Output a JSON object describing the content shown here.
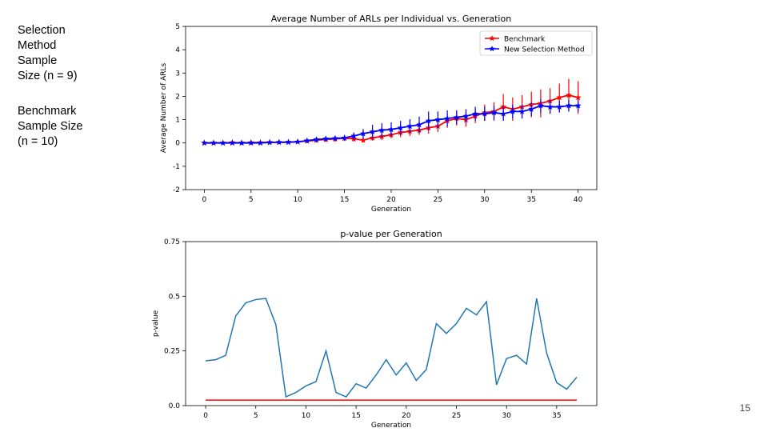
{
  "slide": {
    "selection_text": "Selection\nMethod\nSample\nSize (n = 9)",
    "benchmark_text": "Benchmark\nSample Size\n(n = 10)",
    "page_number": "15"
  },
  "chart_data": [
    {
      "type": "line",
      "title": "Average Number of ARLs per Individual vs. Generation",
      "xlabel": "Generation",
      "ylabel": "Average Number of ARLs",
      "xlim": [
        -2,
        42
      ],
      "ylim": [
        -2,
        5
      ],
      "xticks": [
        0,
        5,
        10,
        15,
        20,
        25,
        30,
        35,
        40
      ],
      "yticks": [
        -2,
        -1,
        0,
        1,
        2,
        3,
        4,
        5
      ],
      "grid": false,
      "legend": "top-right",
      "x": [
        0,
        1,
        2,
        3,
        4,
        5,
        6,
        7,
        8,
        9,
        10,
        11,
        12,
        13,
        14,
        15,
        16,
        17,
        18,
        19,
        20,
        21,
        22,
        23,
        24,
        25,
        26,
        27,
        28,
        29,
        30,
        31,
        32,
        33,
        34,
        35,
        36,
        37,
        38,
        39,
        40
      ],
      "series": [
        {
          "name": "Benchmark",
          "color": "#ff0000",
          "marker": "star",
          "values": [
            0,
            0,
            0,
            0.02,
            0,
            0.02,
            0.02,
            0.03,
            0.03,
            0.04,
            0.05,
            0.08,
            0.12,
            0.15,
            0.17,
            0.2,
            0.18,
            0.12,
            0.22,
            0.28,
            0.35,
            0.45,
            0.5,
            0.55,
            0.65,
            0.72,
            0.95,
            1.05,
            1.0,
            1.15,
            1.3,
            1.35,
            1.55,
            1.45,
            1.55,
            1.65,
            1.7,
            1.8,
            1.95,
            2.05,
            1.95
          ],
          "errors": [
            0.02,
            0.02,
            0.02,
            0.03,
            0.03,
            0.03,
            0.03,
            0.04,
            0.04,
            0.05,
            0.05,
            0.08,
            0.1,
            0.1,
            0.12,
            0.12,
            0.12,
            0.1,
            0.12,
            0.15,
            0.15,
            0.2,
            0.2,
            0.2,
            0.25,
            0.25,
            0.3,
            0.3,
            0.3,
            0.3,
            0.35,
            0.4,
            0.55,
            0.5,
            0.5,
            0.55,
            0.6,
            0.55,
            0.6,
            0.7,
            0.7
          ]
        },
        {
          "name": "New Selection Method",
          "color": "#0000ff",
          "marker": "star",
          "values": [
            0,
            0,
            0,
            0,
            0,
            0,
            0,
            0.02,
            0.03,
            0.03,
            0.05,
            0.1,
            0.15,
            0.18,
            0.2,
            0.22,
            0.3,
            0.4,
            0.48,
            0.55,
            0.58,
            0.65,
            0.72,
            0.78,
            0.95,
            1.0,
            1.05,
            1.1,
            1.15,
            1.25,
            1.25,
            1.3,
            1.25,
            1.35,
            1.35,
            1.45,
            1.6,
            1.55,
            1.55,
            1.6,
            1.6
          ],
          "errors": [
            0.03,
            0.03,
            0.03,
            0.03,
            0.03,
            0.03,
            0.03,
            0.04,
            0.04,
            0.04,
            0.05,
            0.08,
            0.1,
            0.1,
            0.1,
            0.12,
            0.15,
            0.2,
            0.3,
            0.3,
            0.3,
            0.3,
            0.3,
            0.35,
            0.4,
            0.35,
            0.35,
            0.3,
            0.3,
            0.3,
            0.3,
            0.3,
            0.3,
            0.3,
            0.3,
            0.3,
            0.3,
            0.3,
            0.25,
            0.25,
            0.25
          ]
        }
      ]
    },
    {
      "type": "line",
      "title": "p-value per Generation",
      "xlabel": "Generation",
      "ylabel": "p-value",
      "xlim": [
        -2,
        39
      ],
      "ylim": [
        0,
        0.75
      ],
      "xticks": [
        0,
        5,
        10,
        15,
        20,
        25,
        30,
        35
      ],
      "yticks": [
        0.0,
        0.25,
        0.5,
        0.75
      ],
      "ytick_labels": [
        "0.0",
        "0.25",
        "0.5",
        "0.75"
      ],
      "grid": false,
      "x": [
        0,
        1,
        2,
        3,
        4,
        5,
        6,
        7,
        8,
        9,
        10,
        11,
        12,
        13,
        14,
        15,
        16,
        17,
        18,
        19,
        20,
        21,
        22,
        23,
        24,
        25,
        26,
        27,
        28,
        29,
        30,
        31,
        32,
        33,
        34,
        35,
        36,
        37
      ],
      "series": [
        {
          "color": "#1f77b4",
          "values": [
            0.205,
            0.21,
            0.23,
            0.41,
            0.47,
            0.485,
            0.49,
            0.37,
            0.04,
            0.06,
            0.09,
            0.11,
            0.25,
            0.06,
            0.04,
            0.1,
            0.08,
            0.14,
            0.21,
            0.14,
            0.195,
            0.115,
            0.165,
            0.375,
            0.33,
            0.375,
            0.445,
            0.415,
            0.475,
            0.095,
            0.215,
            0.23,
            0.19,
            0.49,
            0.24,
            0.105,
            0.075,
            0.13
          ]
        },
        {
          "color": "#ff0000",
          "values": [
            0.025,
            0.025,
            0.025,
            0.025,
            0.025,
            0.025,
            0.025,
            0.025,
            0.025,
            0.025,
            0.025,
            0.025,
            0.025,
            0.025,
            0.025,
            0.025,
            0.025,
            0.025,
            0.025,
            0.025,
            0.025,
            0.025,
            0.025,
            0.025,
            0.025,
            0.025,
            0.025,
            0.025,
            0.025,
            0.025,
            0.025,
            0.025,
            0.025,
            0.025,
            0.025,
            0.025,
            0.025,
            0.025
          ]
        }
      ]
    }
  ]
}
